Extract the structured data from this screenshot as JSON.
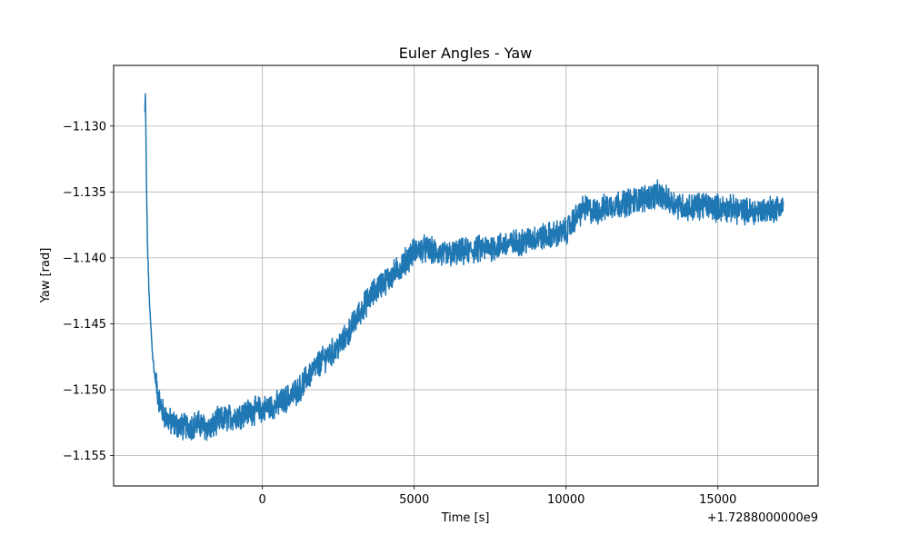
{
  "chart_data": {
    "type": "line",
    "title": "Euler Angles - Yaw",
    "xlabel": "Time [s]",
    "ylabel": "Yaw [rad]",
    "x_offset_label": "+1.7288000000e9",
    "xlim": [
      -4900,
      18300
    ],
    "ylim": [
      -1.1573,
      -1.1254
    ],
    "x_ticks": [
      0,
      5000,
      10000,
      15000
    ],
    "x_tick_labels": [
      "0",
      "5000",
      "10000",
      "15000"
    ],
    "y_ticks": [
      -1.155,
      -1.15,
      -1.145,
      -1.14,
      -1.135,
      -1.13
    ],
    "y_tick_labels": [
      "−1.155",
      "−1.150",
      "−1.145",
      "−1.140",
      "−1.135",
      "−1.130"
    ],
    "grid": true,
    "series": [
      {
        "color": "#1f77b4",
        "x": [
          -3870,
          -3855,
          -3840,
          -3820,
          -3800,
          -3780,
          -3750,
          -3720,
          -3680,
          -3640,
          -3600,
          -3550,
          -3500,
          -3450,
          -3400,
          -3350,
          -3300,
          -3200,
          -3100,
          -3000,
          -2900,
          -2800,
          -2700,
          -2500,
          -2300,
          -2100,
          -1900,
          -1700,
          -1500,
          -1200,
          -900,
          -600,
          -300,
          0,
          300,
          600,
          900,
          1200,
          1500,
          1800,
          2100,
          2400,
          2700,
          3000,
          3300,
          3600,
          3900,
          4200,
          4500,
          4800,
          5000,
          5300,
          5600,
          6000,
          6500,
          7000,
          7500,
          8000,
          8500,
          9000,
          9500,
          10000,
          10300,
          10600,
          10900,
          11200,
          11500,
          12000,
          12500,
          13000,
          13500,
          14000,
          14500,
          15000,
          15500,
          16000,
          16500,
          17000,
          17150
        ],
        "y": [
          -1.129,
          -1.1275,
          -1.13,
          -1.134,
          -1.137,
          -1.1395,
          -1.1415,
          -1.1435,
          -1.145,
          -1.1465,
          -1.1478,
          -1.1488,
          -1.1495,
          -1.1502,
          -1.1508,
          -1.1512,
          -1.1516,
          -1.152,
          -1.1523,
          -1.1525,
          -1.1526,
          -1.1527,
          -1.1528,
          -1.1528,
          -1.1527,
          -1.1526,
          -1.1528,
          -1.153,
          -1.1524,
          -1.1522,
          -1.152,
          -1.1518,
          -1.1516,
          -1.1515,
          -1.1513,
          -1.151,
          -1.1505,
          -1.15,
          -1.149,
          -1.1482,
          -1.1475,
          -1.147,
          -1.1462,
          -1.145,
          -1.1438,
          -1.1428,
          -1.142,
          -1.1415,
          -1.1408,
          -1.14,
          -1.1395,
          -1.1393,
          -1.1395,
          -1.1398,
          -1.1396,
          -1.1394,
          -1.1392,
          -1.139,
          -1.1388,
          -1.1385,
          -1.1383,
          -1.138,
          -1.137,
          -1.1362,
          -1.1365,
          -1.1363,
          -1.136,
          -1.1358,
          -1.1355,
          -1.1352,
          -1.1358,
          -1.1362,
          -1.136,
          -1.1362,
          -1.1363,
          -1.1365,
          -1.1364,
          -1.1362,
          -1.136
        ],
        "noise_amplitude": 0.0009
      }
    ]
  }
}
